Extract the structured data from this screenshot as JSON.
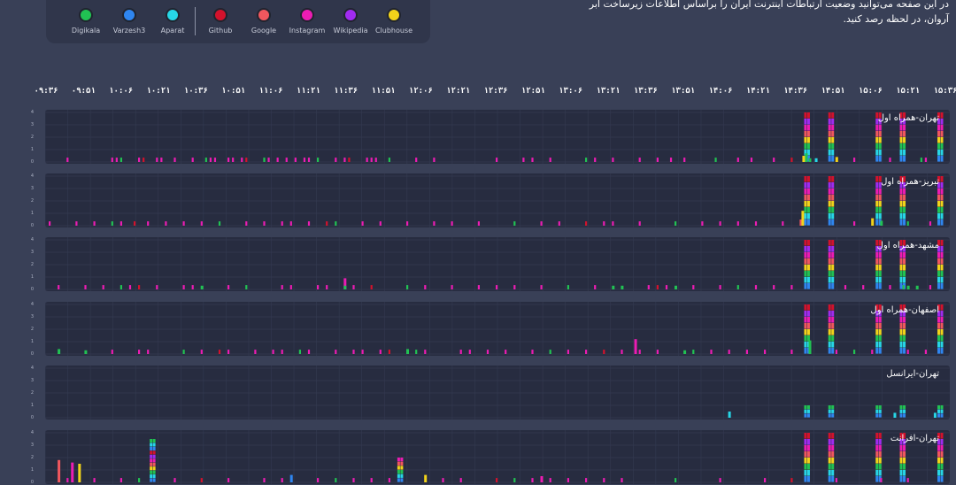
{
  "intro_text": "در این صفحه می‌توانید وضعیت ارتباطات اینترنت ایران را براساس اطلاعات زیرساخت ابر آروان، در لحظه رصد کنید.",
  "legend": [
    {
      "label": "Digikala",
      "color": "#21c253"
    },
    {
      "label": "Varzesh3",
      "color": "#2f86f0"
    },
    {
      "label": "Aparat",
      "color": "#27d6e6"
    },
    {
      "label": "Github",
      "color": "#d3122c"
    },
    {
      "label": "Google",
      "color": "#f0575e"
    },
    {
      "label": "Instagram",
      "color": "#ec1cb3"
    },
    {
      "label": "Wikipedia",
      "color": "#a02bf0"
    },
    {
      "label": "Clubhouse",
      "color": "#f2d31a"
    }
  ],
  "time_ticks": [
    "۰۹:۳۶",
    "۰۹:۵۱",
    "۱۰:۰۶",
    "۱۰:۲۱",
    "۱۰:۳۶",
    "۱۰:۵۱",
    "۱۱:۰۶",
    "۱۱:۲۱",
    "۱۱:۳۶",
    "۱۱:۵۱",
    "۱۲:۰۶",
    "۱۲:۲۱",
    "۱۲:۳۶",
    "۱۲:۵۱",
    "۱۳:۰۶",
    "۱۳:۲۱",
    "۱۳:۳۶",
    "۱۳:۵۱",
    "۱۴:۰۶",
    "۱۴:۲۱",
    "۱۴:۳۶",
    "۱۴:۵۱",
    "۱۵:۰۶",
    "۱۵:۲۱",
    "۱۵:۳۶"
  ],
  "y_ticks": [
    "4",
    "3",
    "2",
    "1",
    "0"
  ],
  "chart_data": {
    "type": "bar",
    "stacked": true,
    "x_range": [
      "۰۹:۳۶",
      "۱۵:۳۶"
    ],
    "ylim": [
      0,
      4
    ],
    "series_order": [
      "Digikala",
      "Varzesh3",
      "Aparat",
      "Github",
      "Google",
      "Instagram",
      "Wikipedia",
      "Clubhouse"
    ],
    "panels": [
      {
        "title": "تهران-همراه اول",
        "bursts": [
          {
            "t": 0.845,
            "w": 0.007
          },
          {
            "t": 0.872,
            "w": 0.008
          },
          {
            "t": 0.925,
            "w": 0.008
          },
          {
            "t": 0.952,
            "w": 0.008
          },
          {
            "t": 1.0,
            "w": 0.008
          }
        ],
        "small": [
          {
            "t": 0.843,
            "v": 0.5,
            "c": "#f2d31a"
          },
          {
            "t": 0.846,
            "v": 0.7,
            "c": "#21c253"
          },
          {
            "t": 0.85,
            "v": 0.3,
            "c": "#21c253"
          },
          {
            "t": 0.88,
            "v": 0.4,
            "c": "#f2d31a"
          },
          {
            "t": 0.857,
            "v": 0.3,
            "c": "#27d6e6"
          }
        ],
        "ticks": [
          0.02,
          0.07,
          0.075,
          0.08,
          0.1,
          0.105,
          0.12,
          0.125,
          0.14,
          0.16,
          0.175,
          0.18,
          0.185,
          0.2,
          0.205,
          0.215,
          0.22,
          0.24,
          0.245,
          0.255,
          0.265,
          0.275,
          0.285,
          0.29,
          0.3,
          0.32,
          0.33,
          0.335,
          0.355,
          0.36,
          0.365,
          0.38,
          0.41,
          0.43,
          0.5,
          0.53,
          0.54,
          0.56,
          0.6,
          0.61,
          0.63,
          0.66,
          0.68,
          0.695,
          0.71,
          0.745,
          0.77,
          0.785,
          0.81,
          0.83,
          0.9,
          0.94,
          0.975,
          0.98
        ]
      },
      {
        "title": "تبریز-همراه اول",
        "bursts": [
          {
            "t": 0.845,
            "w": 0.007
          },
          {
            "t": 0.872,
            "w": 0.008
          },
          {
            "t": 0.925,
            "w": 0.008
          },
          {
            "t": 0.952,
            "w": 0.008
          },
          {
            "t": 1.0,
            "w": 0.008
          }
        ],
        "small": [
          {
            "t": 0.84,
            "v": 0.5,
            "c": "#f0575e"
          },
          {
            "t": 0.842,
            "v": 1.2,
            "c": "#f2d31a"
          },
          {
            "t": 0.92,
            "v": 0.6,
            "c": "#f2d31a"
          },
          {
            "t": 0.93,
            "v": 0.4,
            "c": "#21c253"
          }
        ],
        "ticks": [
          0.0,
          0.03,
          0.05,
          0.07,
          0.08,
          0.095,
          0.11,
          0.13,
          0.15,
          0.17,
          0.19,
          0.22,
          0.24,
          0.26,
          0.27,
          0.29,
          0.31,
          0.32,
          0.35,
          0.37,
          0.4,
          0.43,
          0.45,
          0.48,
          0.52,
          0.55,
          0.57,
          0.6,
          0.62,
          0.63,
          0.66,
          0.7,
          0.73,
          0.75,
          0.77,
          0.79,
          0.82,
          0.9,
          0.96,
          0.985
        ]
      },
      {
        "title": "مشهد-همراه اول",
        "bursts": [
          {
            "t": 0.845,
            "w": 0.007
          },
          {
            "t": 0.872,
            "w": 0.008
          },
          {
            "t": 0.925,
            "w": 0.008
          },
          {
            "t": 0.952,
            "w": 0.008
          },
          {
            "t": 1.0,
            "w": 0.008
          }
        ],
        "small": [
          {
            "t": 0.33,
            "v": 0.9,
            "c": "#ec1cb3"
          },
          {
            "t": 0.33,
            "v": 0.3,
            "c": "#21c253"
          },
          {
            "t": 0.17,
            "v": 0.3,
            "c": "#21c253"
          },
          {
            "t": 0.63,
            "v": 0.3,
            "c": "#21c253"
          },
          {
            "t": 0.64,
            "v": 0.3,
            "c": "#21c253"
          },
          {
            "t": 0.7,
            "v": 0.3,
            "c": "#21c253"
          },
          {
            "t": 0.96,
            "v": 0.3,
            "c": "#21c253"
          },
          {
            "t": 0.97,
            "v": 0.3,
            "c": "#21c253"
          }
        ],
        "ticks": [
          0.01,
          0.04,
          0.06,
          0.08,
          0.09,
          0.1,
          0.12,
          0.15,
          0.16,
          0.2,
          0.22,
          0.26,
          0.27,
          0.3,
          0.31,
          0.34,
          0.36,
          0.4,
          0.42,
          0.45,
          0.48,
          0.5,
          0.52,
          0.55,
          0.58,
          0.61,
          0.67,
          0.68,
          0.69,
          0.72,
          0.75,
          0.77,
          0.79,
          0.81,
          0.83,
          0.89,
          0.91,
          0.94,
          0.955,
          0.985
        ]
      },
      {
        "title": "اصفهان-همراه اول",
        "bursts": [
          {
            "t": 0.845,
            "w": 0.007
          },
          {
            "t": 0.872,
            "w": 0.008
          },
          {
            "t": 0.925,
            "w": 0.008
          },
          {
            "t": 0.952,
            "w": 0.008
          },
          {
            "t": 1.0,
            "w": 0.008
          }
        ],
        "small": [
          {
            "t": 0.85,
            "v": 1.1,
            "c": "#21c253"
          },
          {
            "t": 0.655,
            "v": 1.2,
            "c": "#ec1cb3"
          },
          {
            "t": 0.01,
            "v": 0.4,
            "c": "#21c253"
          },
          {
            "t": 0.04,
            "v": 0.3,
            "c": "#21c253"
          },
          {
            "t": 0.4,
            "v": 0.4,
            "c": "#21c253"
          },
          {
            "t": 0.71,
            "v": 0.3,
            "c": "#21c253"
          }
        ],
        "ticks": [
          0.07,
          0.1,
          0.11,
          0.15,
          0.17,
          0.19,
          0.2,
          0.23,
          0.25,
          0.26,
          0.28,
          0.29,
          0.32,
          0.34,
          0.35,
          0.37,
          0.38,
          0.41,
          0.42,
          0.46,
          0.47,
          0.49,
          0.51,
          0.54,
          0.56,
          0.58,
          0.6,
          0.62,
          0.64,
          0.66,
          0.68,
          0.72,
          0.74,
          0.76,
          0.78,
          0.8,
          0.83,
          0.88,
          0.9,
          0.92,
          0.96,
          0.98
        ]
      },
      {
        "title": "تهران-ایرانسل",
        "bursts": [],
        "small": [
          {
            "t": 0.845,
            "v": 1.0,
            "c": "stack"
          },
          {
            "t": 0.872,
            "v": 1.0,
            "c": "stack"
          },
          {
            "t": 0.925,
            "v": 1.0,
            "c": "stack"
          },
          {
            "t": 0.952,
            "v": 1.0,
            "c": "stack"
          },
          {
            "t": 1.0,
            "v": 1.0,
            "c": "stack"
          },
          {
            "t": 0.76,
            "v": 0.5,
            "c": "#27d6e6"
          },
          {
            "t": 0.945,
            "v": 0.4,
            "c": "#27d6e6"
          },
          {
            "t": 0.99,
            "v": 0.4,
            "c": "#27d6e6"
          }
        ],
        "ticks": []
      },
      {
        "title": "تهران-افرانت",
        "bursts": [
          {
            "t": 0.845,
            "w": 0.007
          },
          {
            "t": 0.872,
            "w": 0.008
          },
          {
            "t": 0.925,
            "w": 0.008
          },
          {
            "t": 0.952,
            "w": 0.008
          },
          {
            "t": 1.0,
            "w": 0.008
          }
        ],
        "small": [
          {
            "t": 0.01,
            "v": 1.8,
            "c": "#f0575e"
          },
          {
            "t": 0.025,
            "v": 1.6,
            "c": "#ec1cb3"
          },
          {
            "t": 0.033,
            "v": 1.5,
            "c": "#f2d31a"
          },
          {
            "t": 0.113,
            "v": 3.5,
            "c": "stack"
          },
          {
            "t": 0.39,
            "v": 2.0,
            "c": "stack"
          },
          {
            "t": 0.27,
            "v": 0.6,
            "c": "#2f86f0"
          },
          {
            "t": 0.42,
            "v": 0.6,
            "c": "#f2d31a"
          },
          {
            "t": 0.55,
            "v": 0.5,
            "c": "#ec1cb3"
          }
        ],
        "ticks": [
          0.02,
          0.05,
          0.08,
          0.1,
          0.14,
          0.17,
          0.2,
          0.24,
          0.26,
          0.3,
          0.32,
          0.34,
          0.36,
          0.38,
          0.44,
          0.46,
          0.5,
          0.52,
          0.54,
          0.56,
          0.58,
          0.6,
          0.62,
          0.64,
          0.7,
          0.75,
          0.8,
          0.83,
          0.88,
          0.93,
          0.96
        ]
      }
    ]
  }
}
